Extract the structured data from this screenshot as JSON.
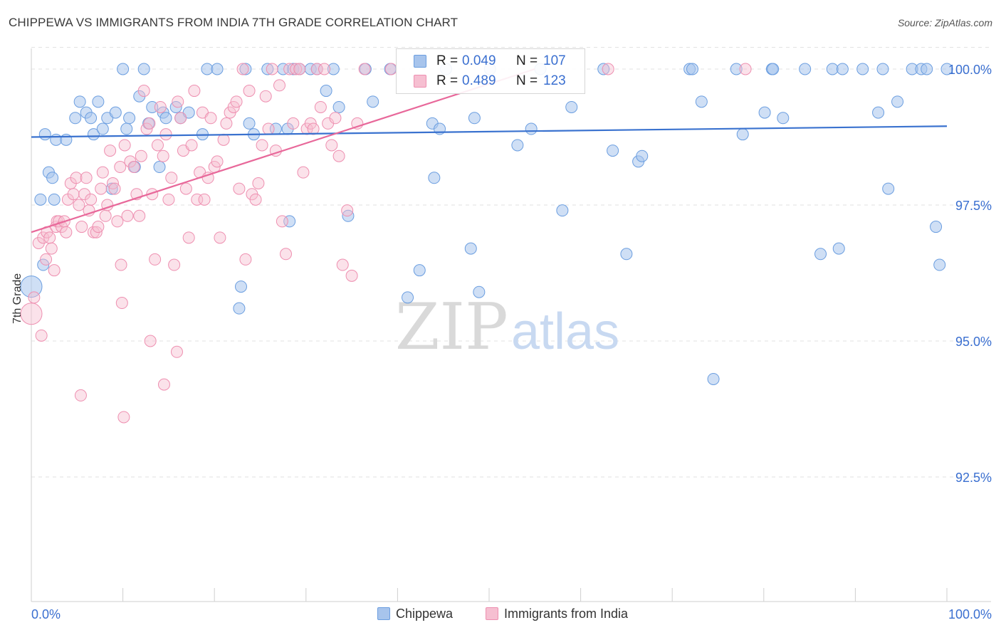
{
  "header": {
    "title": "CHIPPEWA VS IMMIGRANTS FROM INDIA 7TH GRADE CORRELATION CHART",
    "source": "Source: ZipAtlas.com"
  },
  "watermark": {
    "zip": "ZIP",
    "atlas": "atlas"
  },
  "legend": {
    "series1": {
      "r_label": "R =",
      "r_value": "0.049",
      "n_label": "N =",
      "n_value": "107"
    },
    "series2": {
      "r_label": "R =",
      "r_value": "0.489",
      "n_label": "N =",
      "n_value": "123"
    }
  },
  "colors": {
    "blue_fill": "#a7c4ec",
    "blue_stroke": "#6b9ee0",
    "blue_line": "#3a72cf",
    "pink_fill": "#f6bfd1",
    "pink_stroke": "#ee8fb0",
    "pink_line": "#e8689a",
    "tick_text": "#3a6fd0",
    "grid": "#e3e3e3"
  },
  "chart_data": {
    "type": "scatter",
    "title": "CHIPPEWA VS IMMIGRANTS FROM INDIA 7TH GRADE CORRELATION CHART",
    "xlabel": "",
    "ylabel": "7th Grade",
    "xlim": [
      0,
      100
    ],
    "ylim": [
      90.0,
      100.5
    ],
    "x_tick_labels": [
      "0.0%",
      "100.0%"
    ],
    "y_ticks": [
      100.0,
      97.5,
      95.0,
      92.5
    ],
    "y_tick_labels": [
      "100.0%",
      "97.5%",
      "95.0%",
      "92.5%"
    ],
    "grid": true,
    "legend_position": "top-center",
    "series": [
      {
        "name": "Chippewa",
        "color": "#a7c4ec",
        "r": 0.049,
        "n": 107,
        "trend": {
          "x": [
            0,
            100
          ],
          "y": [
            98.75,
            98.95
          ]
        },
        "points": [
          [
            0.0,
            96.0
          ],
          [
            1.0,
            97.6
          ],
          [
            1.3,
            96.4
          ],
          [
            1.5,
            98.8
          ],
          [
            1.9,
            98.1
          ],
          [
            2.3,
            98.0
          ],
          [
            2.5,
            97.6
          ],
          [
            2.7,
            98.7
          ],
          [
            3.8,
            98.7
          ],
          [
            4.8,
            99.1
          ],
          [
            5.3,
            99.4
          ],
          [
            6.0,
            99.2
          ],
          [
            6.5,
            99.1
          ],
          [
            6.8,
            98.8
          ],
          [
            7.3,
            99.4
          ],
          [
            7.8,
            98.9
          ],
          [
            8.3,
            99.1
          ],
          [
            8.8,
            97.8
          ],
          [
            9.2,
            99.2
          ],
          [
            10.0,
            100.0
          ],
          [
            10.4,
            98.9
          ],
          [
            10.7,
            99.1
          ],
          [
            11.3,
            98.2
          ],
          [
            11.8,
            99.5
          ],
          [
            12.3,
            100.0
          ],
          [
            12.8,
            99.0
          ],
          [
            13.2,
            99.3
          ],
          [
            14.0,
            98.2
          ],
          [
            14.4,
            99.2
          ],
          [
            14.7,
            99.1
          ],
          [
            15.8,
            99.3
          ],
          [
            16.3,
            99.1
          ],
          [
            17.2,
            99.2
          ],
          [
            18.7,
            98.8
          ],
          [
            19.2,
            100.0
          ],
          [
            20.3,
            100.0
          ],
          [
            22.9,
            96.0
          ],
          [
            22.7,
            95.6
          ],
          [
            23.4,
            100.0
          ],
          [
            23.8,
            99.0
          ],
          [
            24.3,
            98.8
          ],
          [
            25.8,
            100.0
          ],
          [
            26.7,
            98.9
          ],
          [
            27.5,
            100.0
          ],
          [
            28.0,
            98.9
          ],
          [
            28.2,
            97.2
          ],
          [
            28.6,
            100.0
          ],
          [
            29.3,
            100.0
          ],
          [
            30.5,
            100.0
          ],
          [
            31.2,
            100.0
          ],
          [
            32.2,
            99.6
          ],
          [
            33.0,
            100.0
          ],
          [
            33.6,
            99.3
          ],
          [
            34.6,
            97.3
          ],
          [
            36.5,
            100.0
          ],
          [
            37.3,
            99.4
          ],
          [
            39.2,
            100.0
          ],
          [
            41.1,
            95.8
          ],
          [
            42.4,
            96.3
          ],
          [
            43.8,
            99.0
          ],
          [
            44.0,
            98.0
          ],
          [
            44.6,
            98.9
          ],
          [
            45.3,
            100.0
          ],
          [
            48.0,
            96.7
          ],
          [
            48.4,
            99.1
          ],
          [
            48.9,
            95.9
          ],
          [
            50.1,
            100.0
          ],
          [
            53.1,
            98.6
          ],
          [
            54.6,
            98.9
          ],
          [
            55.6,
            100.0
          ],
          [
            58.0,
            97.4
          ],
          [
            59.0,
            99.3
          ],
          [
            62.5,
            100.0
          ],
          [
            63.5,
            98.5
          ],
          [
            65.0,
            96.6
          ],
          [
            66.3,
            98.3
          ],
          [
            66.7,
            98.4
          ],
          [
            71.9,
            100.0
          ],
          [
            72.2,
            100.0
          ],
          [
            73.2,
            99.4
          ],
          [
            74.5,
            94.3
          ],
          [
            77.0,
            100.0
          ],
          [
            77.7,
            98.8
          ],
          [
            80.1,
            99.2
          ],
          [
            80.9,
            100.0
          ],
          [
            81.0,
            100.0
          ],
          [
            82.1,
            99.1
          ],
          [
            84.5,
            100.0
          ],
          [
            86.2,
            96.6
          ],
          [
            87.5,
            100.0
          ],
          [
            88.2,
            96.7
          ],
          [
            88.6,
            100.0
          ],
          [
            90.8,
            100.0
          ],
          [
            92.5,
            99.2
          ],
          [
            93.0,
            100.0
          ],
          [
            93.6,
            97.8
          ],
          [
            94.6,
            99.4
          ],
          [
            96.2,
            100.0
          ],
          [
            97.2,
            100.0
          ],
          [
            97.8,
            100.0
          ],
          [
            98.8,
            97.1
          ],
          [
            99.2,
            96.4
          ],
          [
            100.0,
            100.0
          ]
        ]
      },
      {
        "name": "Immigrants from India",
        "color": "#f6bfd1",
        "r": 0.489,
        "n": 123,
        "trend": {
          "x": [
            0,
            55
          ],
          "y": [
            97.0,
            100.0
          ]
        },
        "points": [
          [
            0.0,
            95.5
          ],
          [
            0.3,
            95.8
          ],
          [
            0.8,
            96.8
          ],
          [
            1.1,
            95.1
          ],
          [
            1.3,
            96.9
          ],
          [
            1.6,
            96.5
          ],
          [
            1.7,
            97.0
          ],
          [
            2.0,
            96.9
          ],
          [
            2.2,
            96.7
          ],
          [
            2.5,
            96.3
          ],
          [
            2.7,
            97.1
          ],
          [
            2.8,
            97.2
          ],
          [
            3.0,
            97.2
          ],
          [
            3.3,
            97.1
          ],
          [
            3.6,
            97.2
          ],
          [
            3.8,
            97.0
          ],
          [
            4.0,
            97.6
          ],
          [
            4.3,
            97.9
          ],
          [
            4.6,
            97.7
          ],
          [
            4.9,
            98.0
          ],
          [
            5.2,
            97.5
          ],
          [
            5.5,
            97.1
          ],
          [
            5.8,
            97.7
          ],
          [
            6.0,
            98.0
          ],
          [
            6.3,
            97.4
          ],
          [
            6.5,
            97.6
          ],
          [
            6.8,
            97.0
          ],
          [
            7.1,
            97.0
          ],
          [
            7.3,
            97.1
          ],
          [
            7.6,
            97.8
          ],
          [
            7.8,
            98.1
          ],
          [
            8.1,
            97.3
          ],
          [
            8.3,
            97.5
          ],
          [
            8.6,
            98.5
          ],
          [
            8.9,
            97.9
          ],
          [
            9.1,
            97.8
          ],
          [
            9.4,
            97.2
          ],
          [
            9.7,
            98.2
          ],
          [
            9.8,
            96.4
          ],
          [
            9.9,
            95.7
          ],
          [
            10.2,
            98.6
          ],
          [
            10.5,
            97.3
          ],
          [
            10.8,
            98.3
          ],
          [
            11.2,
            98.2
          ],
          [
            11.5,
            97.7
          ],
          [
            11.8,
            97.3
          ],
          [
            12.0,
            98.4
          ],
          [
            12.3,
            99.6
          ],
          [
            12.6,
            98.9
          ],
          [
            12.9,
            99.0
          ],
          [
            13.2,
            97.7
          ],
          [
            13.5,
            96.5
          ],
          [
            13.8,
            98.6
          ],
          [
            14.1,
            99.3
          ],
          [
            14.4,
            98.4
          ],
          [
            14.7,
            98.8
          ],
          [
            15.0,
            97.6
          ],
          [
            15.3,
            98.0
          ],
          [
            15.6,
            96.4
          ],
          [
            16.0,
            99.4
          ],
          [
            16.3,
            99.1
          ],
          [
            16.6,
            98.5
          ],
          [
            16.9,
            97.8
          ],
          [
            17.2,
            96.9
          ],
          [
            17.5,
            98.6
          ],
          [
            17.8,
            99.6
          ],
          [
            18.1,
            97.6
          ],
          [
            18.4,
            98.1
          ],
          [
            18.7,
            99.2
          ],
          [
            18.9,
            97.6
          ],
          [
            19.3,
            98.0
          ],
          [
            19.6,
            99.1
          ],
          [
            20.0,
            98.2
          ],
          [
            20.3,
            98.3
          ],
          [
            20.6,
            96.9
          ],
          [
            21.0,
            98.7
          ],
          [
            21.3,
            99.0
          ],
          [
            21.7,
            99.2
          ],
          [
            22.1,
            99.3
          ],
          [
            22.4,
            99.4
          ],
          [
            22.7,
            97.8
          ],
          [
            23.1,
            100.0
          ],
          [
            23.4,
            96.5
          ],
          [
            23.8,
            99.6
          ],
          [
            24.1,
            97.7
          ],
          [
            24.5,
            97.6
          ],
          [
            24.8,
            97.9
          ],
          [
            25.2,
            98.6
          ],
          [
            25.6,
            99.5
          ],
          [
            25.9,
            98.9
          ],
          [
            26.3,
            100.0
          ],
          [
            26.7,
            98.5
          ],
          [
            27.1,
            99.7
          ],
          [
            27.4,
            97.2
          ],
          [
            27.8,
            96.6
          ],
          [
            28.2,
            100.0
          ],
          [
            28.6,
            99.0
          ],
          [
            28.9,
            100.0
          ],
          [
            29.3,
            100.0
          ],
          [
            29.7,
            98.1
          ],
          [
            30.1,
            98.9
          ],
          [
            30.5,
            99.0
          ],
          [
            30.8,
            98.9
          ],
          [
            31.2,
            100.0
          ],
          [
            31.6,
            99.3
          ],
          [
            32.0,
            100.0
          ],
          [
            32.4,
            99.0
          ],
          [
            32.8,
            98.6
          ],
          [
            33.2,
            99.1
          ],
          [
            33.6,
            98.4
          ],
          [
            34.0,
            96.4
          ],
          [
            34.5,
            97.4
          ],
          [
            35.0,
            96.2
          ],
          [
            35.6,
            99.0
          ],
          [
            36.4,
            100.0
          ],
          [
            39.3,
            100.0
          ],
          [
            63.0,
            100.0
          ],
          [
            78.0,
            100.0
          ],
          [
            13.0,
            95.0
          ],
          [
            14.5,
            94.2
          ],
          [
            15.9,
            94.8
          ],
          [
            10.1,
            93.6
          ],
          [
            5.4,
            94.0
          ]
        ]
      }
    ]
  },
  "bottom_legend": {
    "item1": "Chippewa",
    "item2": "Immigrants from India"
  }
}
